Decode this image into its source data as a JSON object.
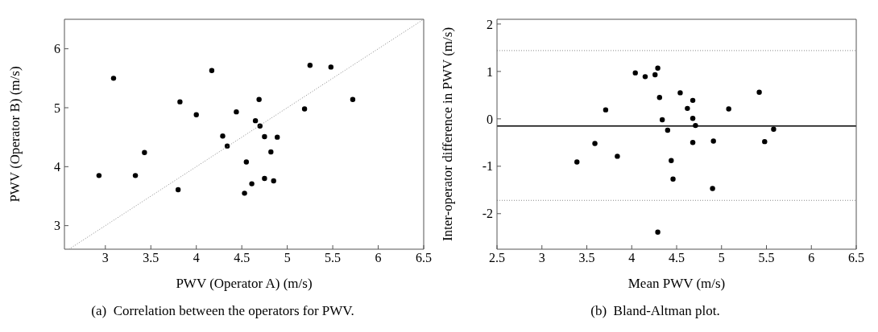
{
  "chart_data": [
    {
      "type": "scatter",
      "xlabel": "PWV (Operator A) (m/s)",
      "ylabel": "PWV (Operator B) (m/s)",
      "xlim": [
        2.55,
        6.5
      ],
      "ylim": [
        2.6,
        6.5
      ],
      "xticks": [
        3,
        3.5,
        4,
        4.5,
        5,
        5.5,
        6,
        6.5
      ],
      "yticks": [
        3,
        4,
        5,
        6
      ],
      "marker": "circle",
      "grid": false,
      "annotations": [
        "(a)  Correlation between the operators for PWV."
      ],
      "series": [
        {
          "color": "#000000",
          "x": [
            2.93,
            3.09,
            3.33,
            3.43,
            3.8,
            3.82,
            4.0,
            4.17,
            4.29,
            4.34,
            4.44,
            4.53,
            4.55,
            4.61,
            4.65,
            4.69,
            4.7,
            4.75,
            4.75,
            4.82,
            4.85,
            4.89,
            5.19,
            5.25,
            5.48,
            5.72
          ],
          "values": [
            3.85,
            5.5,
            3.85,
            4.24,
            3.61,
            5.1,
            4.88,
            5.63,
            4.52,
            4.35,
            4.93,
            3.55,
            4.08,
            3.71,
            4.78,
            5.14,
            4.69,
            4.51,
            3.8,
            4.25,
            3.76,
            4.5,
            4.98,
            5.72,
            5.69,
            5.14
          ]
        },
        {
          "type": "line",
          "color": "#888888",
          "line_style": "dotted",
          "marker": "none",
          "x": [
            2.6,
            6.5
          ],
          "values": [
            2.6,
            6.5
          ]
        }
      ]
    },
    {
      "type": "scatter",
      "xlabel": "Mean PWV  (m/s)",
      "ylabel": "Inter-operator difference in PWV (m/s)",
      "xlim": [
        2.5,
        6.5
      ],
      "ylim": [
        -2.75,
        2.1
      ],
      "xticks": [
        2.5,
        3,
        3.5,
        4,
        4.5,
        5,
        5.5,
        6,
        6.5
      ],
      "yticks": [
        -2,
        -1,
        0,
        1,
        2
      ],
      "marker": "circle",
      "grid": false,
      "annotations": [
        "(b)  Bland-Altman plot."
      ],
      "ref_lines": [
        {
          "axis": "y",
          "value": -0.15,
          "color": "#000000",
          "line_style": "solid"
        },
        {
          "axis": "y",
          "value": 1.44,
          "color": "#888888",
          "line_style": "dotted"
        },
        {
          "axis": "y",
          "value": -1.72,
          "color": "#888888",
          "line_style": "dotted"
        }
      ],
      "series": [
        {
          "color": "#000000",
          "x": [
            3.39,
            3.59,
            3.71,
            3.84,
            4.04,
            4.15,
            4.26,
            4.29,
            4.29,
            4.31,
            4.34,
            4.4,
            4.44,
            4.46,
            4.54,
            4.62,
            4.68,
            4.68,
            4.68,
            4.71,
            4.9,
            4.91,
            5.08,
            5.42,
            5.48,
            5.58
          ],
          "values": [
            -0.91,
            -0.52,
            0.19,
            -0.79,
            0.97,
            0.89,
            0.93,
            1.07,
            -2.39,
            0.45,
            -0.02,
            -0.24,
            -0.88,
            -1.27,
            0.55,
            0.22,
            0.39,
            0.01,
            -0.5,
            -0.14,
            -1.47,
            -0.47,
            0.21,
            0.56,
            -0.48,
            -0.22
          ]
        }
      ]
    }
  ]
}
